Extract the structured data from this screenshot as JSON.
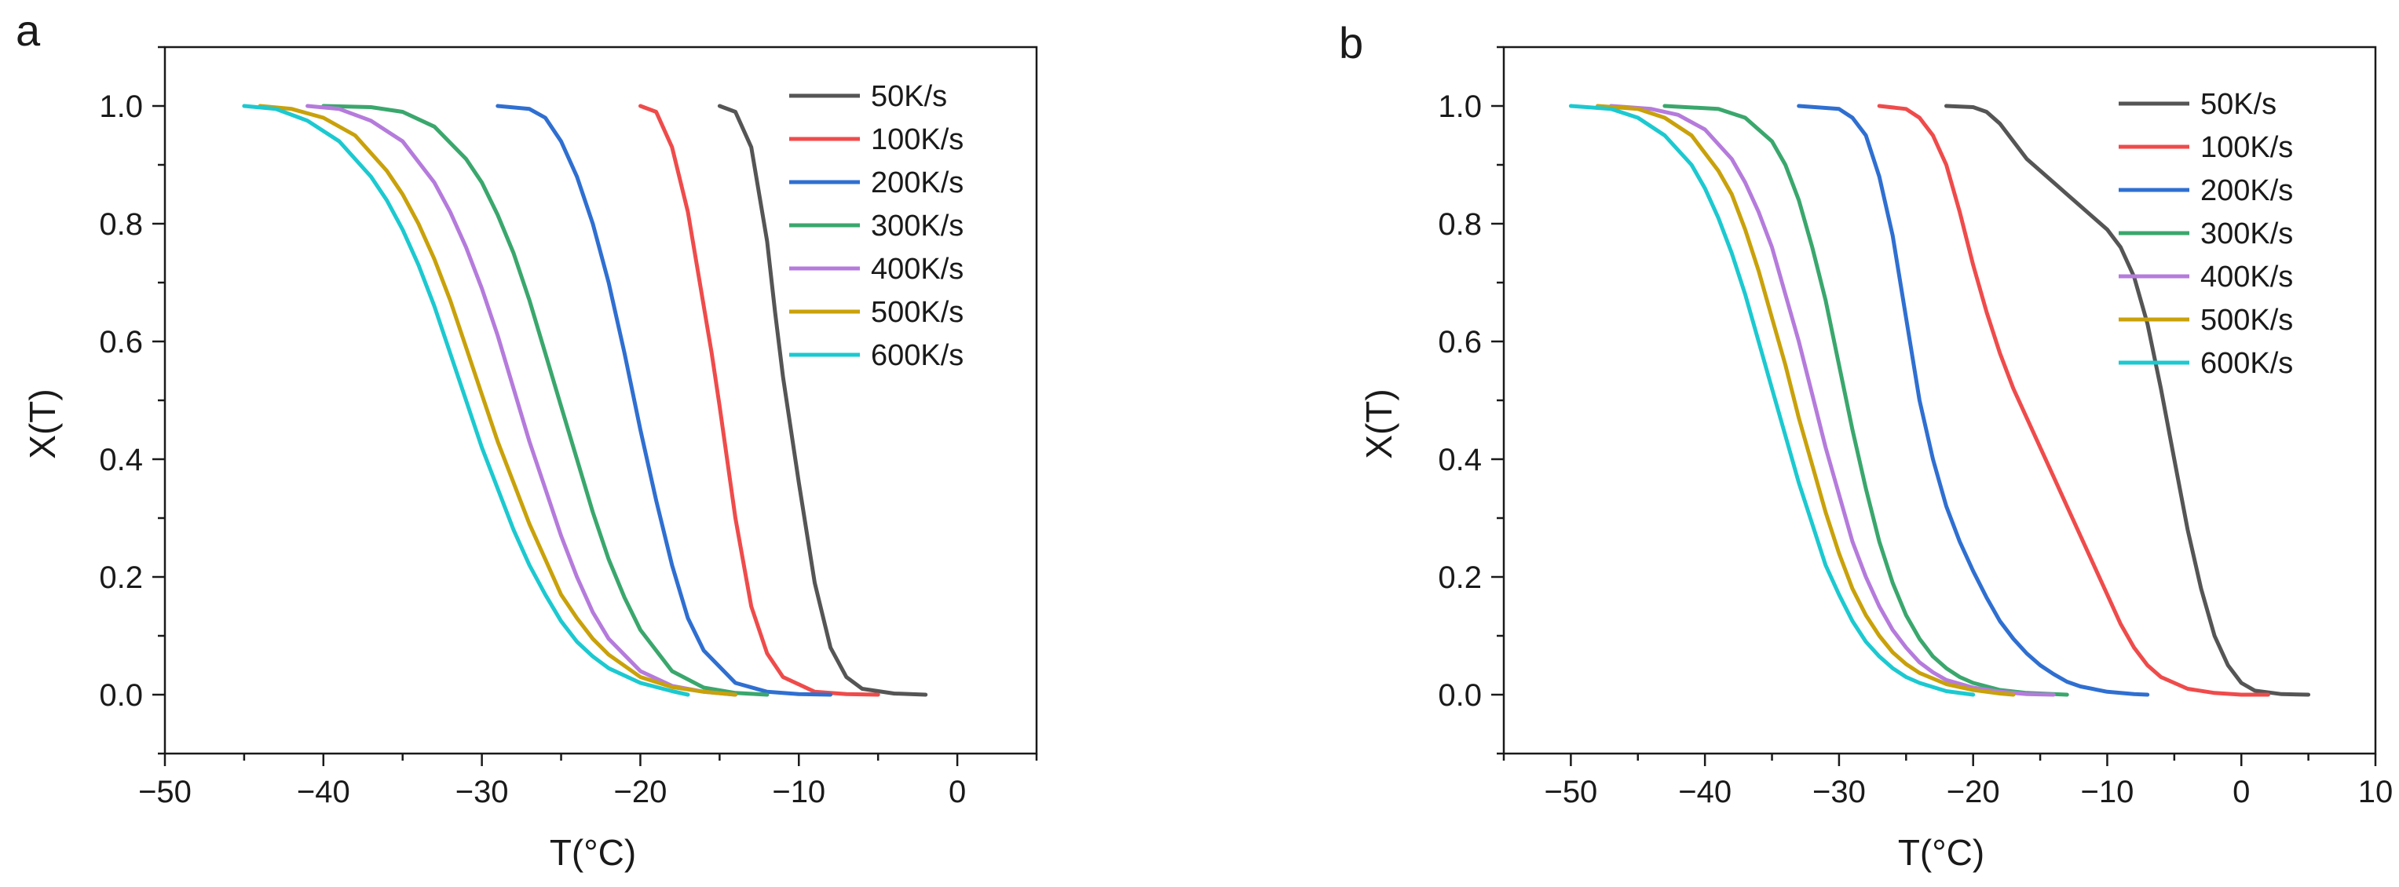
{
  "figure": {
    "panels": [
      "a",
      "b"
    ]
  },
  "chart_data": [
    {
      "panel_label": "a",
      "type": "line",
      "title": "",
      "xlabel": "T(°C)",
      "ylabel": "X(T)",
      "xlim": [
        -50,
        5
      ],
      "ylim": [
        -0.1,
        1.1
      ],
      "xticks": [
        -50,
        -40,
        -30,
        -20,
        -10,
        0
      ],
      "xtick_labels": [
        "−50",
        "−40",
        "−30",
        "−20",
        "−10",
        "0"
      ],
      "yticks": [
        0,
        0.2,
        0.4,
        0.6,
        0.8,
        1.0
      ],
      "ytick_labels": [
        "0.0",
        "0.2",
        "0.4",
        "0.6",
        "0.8",
        "1.0"
      ],
      "legend_position": "top-right",
      "series": [
        {
          "name": "50K/s",
          "color": "#555555",
          "x": [
            -15,
            -14,
            -13,
            -12,
            -11.5,
            -11,
            -10,
            -9,
            -8,
            -7,
            -6,
            -4,
            -2
          ],
          "y": [
            1.0,
            0.99,
            0.93,
            0.77,
            0.65,
            0.54,
            0.36,
            0.19,
            0.08,
            0.03,
            0.01,
            0.002,
            0.0
          ]
        },
        {
          "name": "100K/s",
          "color": "#ef4b4b",
          "x": [
            -20,
            -19,
            -18,
            -17,
            -16,
            -15.5,
            -15,
            -14,
            -13,
            -12,
            -11,
            -9,
            -7,
            -5
          ],
          "y": [
            1.0,
            0.99,
            0.93,
            0.82,
            0.66,
            0.58,
            0.49,
            0.3,
            0.15,
            0.07,
            0.03,
            0.005,
            0.001,
            0.0
          ]
        },
        {
          "name": "200K/s",
          "color": "#2f6fd1",
          "x": [
            -29,
            -27,
            -26,
            -25,
            -24,
            -23,
            -22,
            -21,
            -20,
            -19,
            -18,
            -17,
            -16,
            -14,
            -12,
            -10,
            -8
          ],
          "y": [
            1.0,
            0.995,
            0.98,
            0.94,
            0.88,
            0.8,
            0.7,
            0.58,
            0.45,
            0.33,
            0.22,
            0.13,
            0.075,
            0.02,
            0.005,
            0.001,
            0.0
          ]
        },
        {
          "name": "300K/s",
          "color": "#3aa76d",
          "x": [
            -40,
            -37,
            -35,
            -33,
            -31,
            -30,
            -29,
            -28,
            -27,
            -26,
            -25,
            -24,
            -23,
            -22,
            -21,
            -20,
            -18,
            -16,
            -14,
            -12
          ],
          "y": [
            1.0,
            0.998,
            0.99,
            0.965,
            0.91,
            0.87,
            0.815,
            0.75,
            0.67,
            0.58,
            0.49,
            0.4,
            0.31,
            0.23,
            0.165,
            0.11,
            0.04,
            0.012,
            0.003,
            0.0
          ]
        },
        {
          "name": "400K/s",
          "color": "#b57bdc",
          "x": [
            -41,
            -39,
            -37,
            -35,
            -33,
            -32,
            -31,
            -30,
            -29,
            -28,
            -27,
            -26,
            -25,
            -24,
            -23,
            -22,
            -20,
            -18,
            -16,
            -14
          ],
          "y": [
            1.0,
            0.995,
            0.975,
            0.94,
            0.87,
            0.82,
            0.76,
            0.69,
            0.61,
            0.52,
            0.43,
            0.35,
            0.27,
            0.2,
            0.14,
            0.095,
            0.04,
            0.015,
            0.005,
            0.0
          ]
        },
        {
          "name": "500K/s",
          "color": "#c9a10a",
          "x": [
            -44,
            -42,
            -40,
            -38,
            -36,
            -35,
            -34,
            -33,
            -32,
            -31,
            -30,
            -29,
            -28,
            -27,
            -26,
            -25,
            -24,
            -23,
            -22,
            -20,
            -18,
            -16,
            -14
          ],
          "y": [
            1.0,
            0.995,
            0.98,
            0.95,
            0.89,
            0.85,
            0.8,
            0.74,
            0.67,
            0.59,
            0.51,
            0.43,
            0.36,
            0.29,
            0.23,
            0.17,
            0.13,
            0.095,
            0.068,
            0.03,
            0.013,
            0.005,
            0.0
          ]
        },
        {
          "name": "600K/s",
          "color": "#1cc9d0",
          "x": [
            -45,
            -43,
            -41,
            -39,
            -37,
            -36,
            -35,
            -34,
            -33,
            -32,
            -31,
            -30,
            -29,
            -28,
            -27,
            -26,
            -25,
            -24,
            -23,
            -22,
            -20,
            -18,
            -17
          ],
          "y": [
            1.0,
            0.995,
            0.975,
            0.94,
            0.88,
            0.84,
            0.79,
            0.73,
            0.66,
            0.58,
            0.5,
            0.42,
            0.35,
            0.28,
            0.22,
            0.17,
            0.125,
            0.09,
            0.065,
            0.045,
            0.02,
            0.006,
            0.0
          ]
        }
      ]
    },
    {
      "panel_label": "b",
      "type": "line",
      "title": "",
      "xlabel": "T(°C)",
      "ylabel": "X(T)",
      "xlim": [
        -55,
        10
      ],
      "ylim": [
        -0.1,
        1.1
      ],
      "xticks": [
        -50,
        -40,
        -30,
        -20,
        -10,
        0,
        10
      ],
      "xtick_labels": [
        "−50",
        "−40",
        "−30",
        "−20",
        "−10",
        "0",
        "10"
      ],
      "yticks": [
        0,
        0.2,
        0.4,
        0.6,
        0.8,
        1.0
      ],
      "ytick_labels": [
        "0.0",
        "0.2",
        "0.4",
        "0.6",
        "0.8",
        "1.0"
      ],
      "legend_position": "top-right",
      "series": [
        {
          "name": "50K/s",
          "color": "#555555",
          "x": [
            -22,
            -20,
            -19,
            -18,
            -17,
            -16,
            -15,
            -14,
            -13,
            -12,
            -11,
            -10,
            -9,
            -8,
            -7,
            -6,
            -5,
            -4,
            -3,
            -2,
            -1,
            0,
            1,
            3,
            5
          ],
          "y": [
            1.0,
            0.998,
            0.99,
            0.97,
            0.94,
            0.91,
            0.89,
            0.87,
            0.85,
            0.83,
            0.81,
            0.79,
            0.76,
            0.71,
            0.63,
            0.52,
            0.4,
            0.28,
            0.18,
            0.1,
            0.05,
            0.02,
            0.007,
            0.001,
            0.0
          ]
        },
        {
          "name": "100K/s",
          "color": "#ef4b4b",
          "x": [
            -27,
            -25,
            -24,
            -23,
            -22,
            -21,
            -20,
            -19,
            -18,
            -17,
            -16,
            -15,
            -14,
            -13,
            -12,
            -11,
            -10,
            -9,
            -8,
            -7,
            -6,
            -4,
            -2,
            0,
            2
          ],
          "y": [
            1.0,
            0.995,
            0.98,
            0.95,
            0.9,
            0.82,
            0.73,
            0.65,
            0.58,
            0.52,
            0.47,
            0.42,
            0.37,
            0.32,
            0.27,
            0.22,
            0.17,
            0.12,
            0.08,
            0.05,
            0.03,
            0.01,
            0.003,
            0.0,
            0.0
          ]
        },
        {
          "name": "200K/s",
          "color": "#2f6fd1",
          "x": [
            -33,
            -30,
            -29,
            -28,
            -27,
            -26,
            -25,
            -24,
            -23,
            -22,
            -21,
            -20,
            -19,
            -18,
            -17,
            -16,
            -15,
            -14,
            -13,
            -12,
            -10,
            -8,
            -7
          ],
          "y": [
            1.0,
            0.995,
            0.98,
            0.95,
            0.88,
            0.78,
            0.64,
            0.5,
            0.4,
            0.32,
            0.26,
            0.21,
            0.165,
            0.125,
            0.095,
            0.07,
            0.05,
            0.035,
            0.022,
            0.014,
            0.005,
            0.001,
            0.0
          ]
        },
        {
          "name": "300K/s",
          "color": "#3aa76d",
          "x": [
            -43,
            -39,
            -37,
            -35,
            -34,
            -33,
            -32,
            -31,
            -30,
            -29,
            -28,
            -27,
            -26,
            -25,
            -24,
            -23,
            -22,
            -21,
            -20,
            -18,
            -16,
            -14,
            -13
          ],
          "y": [
            1.0,
            0.995,
            0.98,
            0.94,
            0.9,
            0.84,
            0.76,
            0.67,
            0.56,
            0.45,
            0.35,
            0.26,
            0.19,
            0.135,
            0.095,
            0.065,
            0.045,
            0.03,
            0.02,
            0.008,
            0.003,
            0.001,
            0.0
          ]
        },
        {
          "name": "400K/s",
          "color": "#b57bdc",
          "x": [
            -47,
            -44,
            -42,
            -40,
            -38,
            -37,
            -36,
            -35,
            -34,
            -33,
            -32,
            -31,
            -30,
            -29,
            -28,
            -27,
            -26,
            -25,
            -24,
            -23,
            -22,
            -20,
            -18,
            -16,
            -14
          ],
          "y": [
            1.0,
            0.995,
            0.985,
            0.96,
            0.91,
            0.87,
            0.82,
            0.76,
            0.68,
            0.6,
            0.51,
            0.42,
            0.34,
            0.26,
            0.2,
            0.15,
            0.11,
            0.08,
            0.055,
            0.038,
            0.025,
            0.012,
            0.005,
            0.001,
            0.0
          ]
        },
        {
          "name": "500K/s",
          "color": "#c9a10a",
          "x": [
            -48,
            -45,
            -43,
            -41,
            -39,
            -38,
            -37,
            -36,
            -35,
            -34,
            -33,
            -32,
            -31,
            -30,
            -29,
            -28,
            -27,
            -26,
            -25,
            -24,
            -22,
            -20,
            -18,
            -17
          ],
          "y": [
            1.0,
            0.995,
            0.98,
            0.95,
            0.89,
            0.85,
            0.79,
            0.72,
            0.64,
            0.56,
            0.47,
            0.39,
            0.31,
            0.24,
            0.18,
            0.135,
            0.1,
            0.072,
            0.052,
            0.037,
            0.018,
            0.008,
            0.002,
            0.0
          ]
        },
        {
          "name": "600K/s",
          "color": "#1cc9d0",
          "x": [
            -50,
            -47,
            -45,
            -43,
            -41,
            -40,
            -39,
            -38,
            -37,
            -36,
            -35,
            -34,
            -33,
            -32,
            -31,
            -30,
            -29,
            -28,
            -27,
            -26,
            -25,
            -24,
            -22,
            -20
          ],
          "y": [
            1.0,
            0.995,
            0.98,
            0.95,
            0.9,
            0.86,
            0.81,
            0.75,
            0.68,
            0.6,
            0.52,
            0.44,
            0.36,
            0.29,
            0.22,
            0.17,
            0.125,
            0.09,
            0.065,
            0.045,
            0.03,
            0.02,
            0.006,
            0.0
          ]
        }
      ]
    }
  ]
}
